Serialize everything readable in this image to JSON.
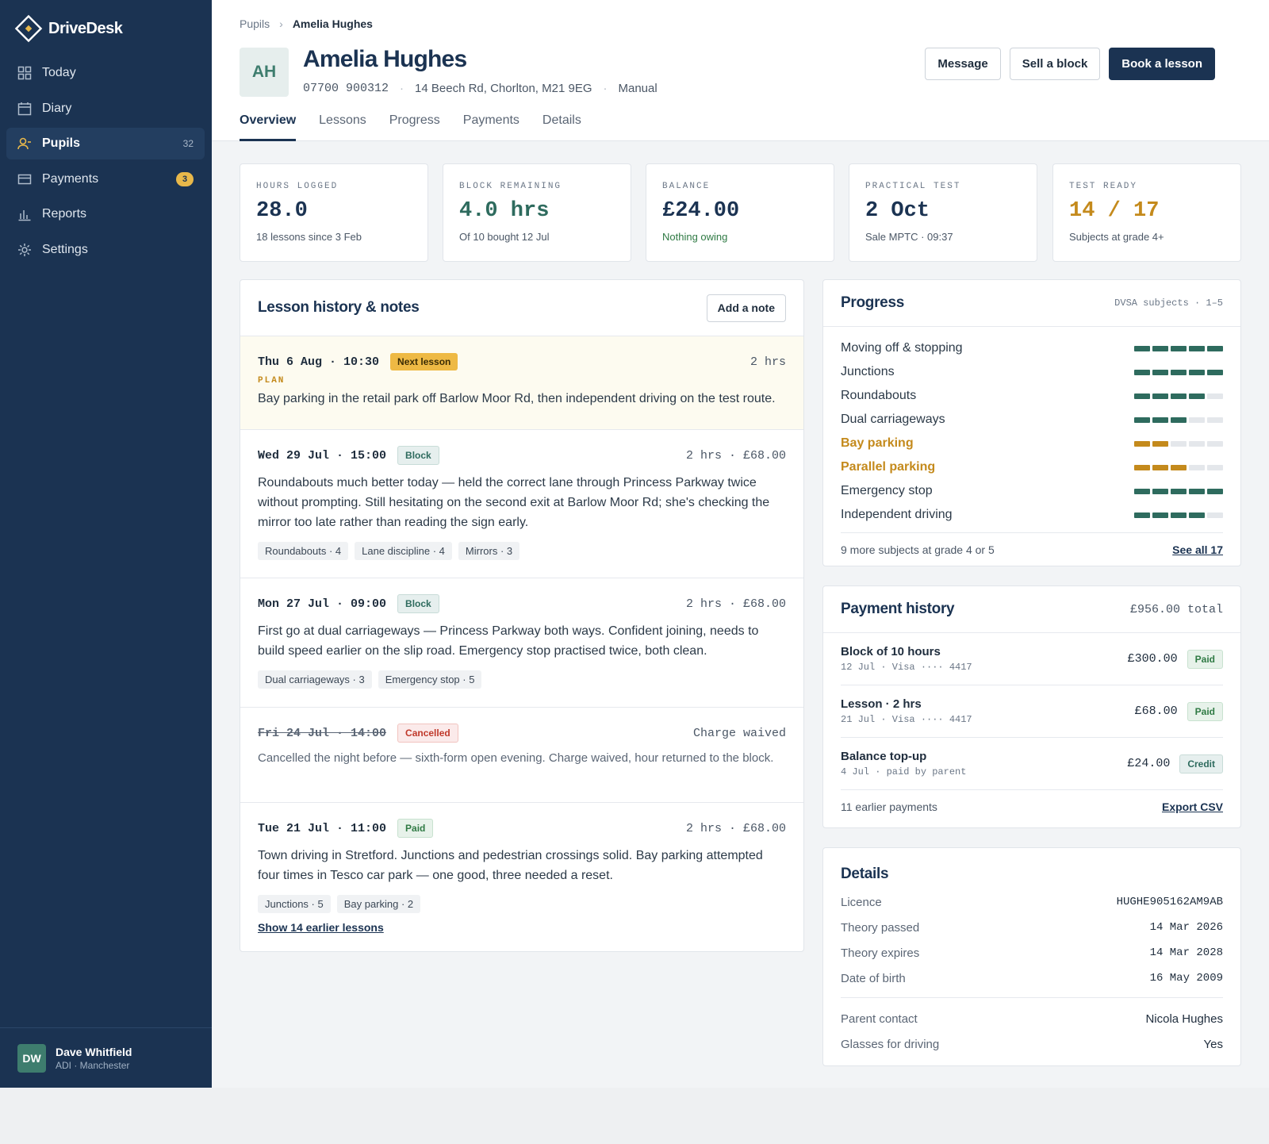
{
  "app": {
    "name": "DriveDesk"
  },
  "sidebar": {
    "items": [
      {
        "label": "Today",
        "icon": "grid-icon"
      },
      {
        "label": "Diary",
        "icon": "calendar-icon"
      },
      {
        "label": "Pupils",
        "icon": "user-icon",
        "count": "32",
        "active": true
      },
      {
        "label": "Payments",
        "icon": "card-icon",
        "badge": "3"
      },
      {
        "label": "Reports",
        "icon": "bar-chart-icon"
      },
      {
        "label": "Settings",
        "icon": "gear-icon"
      }
    ],
    "user": {
      "initials": "DW",
      "name": "Dave Whitfield",
      "role": "ADI · Manchester"
    }
  },
  "header": {
    "breadcrumb": {
      "parent": "Pupils",
      "current": "Amelia Hughes"
    },
    "initials": "AH",
    "name": "Amelia Hughes",
    "phone": "07700 900312",
    "address": "14 Beech Rd, Chorlton, M21 9EG",
    "transmission": "Manual",
    "buttons": {
      "message": "Message",
      "sell": "Sell a block",
      "book": "Book a lesson"
    },
    "tabs": [
      "Overview",
      "Lessons",
      "Progress",
      "Payments",
      "Details"
    ]
  },
  "stats": [
    {
      "label": "HOURS LOGGED",
      "value": "28.0",
      "sub": "18 lessons since 3 Feb",
      "color": "#1b3352"
    },
    {
      "label": "BLOCK REMAINING",
      "value": "4.0 hrs",
      "sub": "Of 10 bought 12 Jul",
      "color": "#2e6b5e"
    },
    {
      "label": "BALANCE",
      "value": "£24.00",
      "sub": "Nothing owing",
      "color": "#1b3352",
      "sub_color": "#2f7a44"
    },
    {
      "label": "PRACTICAL TEST",
      "value": "2 Oct",
      "sub": "Sale MPTC · 09:37",
      "color": "#1b3352"
    },
    {
      "label": "TEST READY",
      "value": "14 / 17",
      "sub": "Subjects at grade 4+",
      "color": "#c48a1c"
    }
  ],
  "history": {
    "title": "Lesson history & notes",
    "add_note": "Add a note",
    "next": {
      "date": "Thu 6 Aug · 10:30",
      "badge": "Next lesson",
      "right": "2 hrs",
      "plan_label": "PLAN",
      "text": "Bay parking in the retail park off Barlow Moor Rd, then independent driving on the test route."
    },
    "entries": [
      {
        "date": "Wed 29 Jul · 15:00",
        "badge": "Block",
        "right": "2 hrs · £68.00",
        "text": "Roundabouts much better today — held the correct lane through Princess Parkway twice without prompting. Still hesitating on the second exit at Barlow Moor Rd; she's checking the mirror too late rather than reading the sign early.",
        "tags": [
          "Roundabouts · 4",
          "Lane discipline · 4",
          "Mirrors · 3"
        ]
      },
      {
        "date": "Mon 27 Jul · 09:00",
        "badge": "Block",
        "right": "2 hrs · £68.00",
        "text": "First go at dual carriageways — Princess Parkway both ways. Confident joining, needs to build speed earlier on the slip road. Emergency stop practised twice, both clean.",
        "tags": [
          "Dual carriageways · 3",
          "Emergency stop · 5"
        ]
      },
      {
        "date": "Fri 24 Jul · 14:00",
        "badge": "Cancelled",
        "right": "Charge waived",
        "text": "Cancelled the night before — sixth-form open evening. Charge waived, hour returned to the block.",
        "tags": []
      },
      {
        "date": "Tue 21 Jul · 11:00",
        "badge": "Paid",
        "right": "2 hrs · £68.00",
        "text": "Town driving in Stretford. Junctions and pedestrian crossings solid. Bay parking attempted four times in Tesco car park — one good, three needed a reset.",
        "tags": [
          "Junctions · 5",
          "Bay parking · 2"
        ]
      }
    ],
    "more": "Show 14 earlier lessons"
  },
  "progress": {
    "title": "Progress",
    "aside": "DVSA subjects · 1–5",
    "subjects": [
      {
        "name": "Moving off & stopping",
        "grade": 5,
        "warn": false
      },
      {
        "name": "Junctions",
        "grade": 5,
        "warn": false
      },
      {
        "name": "Roundabouts",
        "grade": 4,
        "warn": false
      },
      {
        "name": "Dual carriageways",
        "grade": 3,
        "warn": false
      },
      {
        "name": "Bay parking",
        "grade": 2,
        "warn": true
      },
      {
        "name": "Parallel parking",
        "grade": 3,
        "warn": true
      },
      {
        "name": "Emergency stop",
        "grade": 5,
        "warn": false
      },
      {
        "name": "Independent driving",
        "grade": 4,
        "warn": false
      }
    ],
    "footer": "9 more subjects at grade 4 or 5",
    "see_all": "See all 17"
  },
  "payments": {
    "title": "Payment history",
    "total": "£956.00 total",
    "rows": [
      {
        "title": "Block of 10 hours",
        "sub": "12 Jul · Visa ···· 4417",
        "amount": "£300.00",
        "badge": "Paid"
      },
      {
        "title": "Lesson · 2 hrs",
        "sub": "21 Jul · Visa ···· 4417",
        "amount": "£68.00",
        "badge": "Paid"
      },
      {
        "title": "Balance top-up",
        "sub": "4 Jul · paid by parent",
        "amount": "£24.00",
        "badge": "Credit"
      }
    ],
    "footer": "11 earlier payments",
    "export": "Export CSV"
  },
  "details": {
    "title": "Details",
    "rows": [
      {
        "label": "Licence",
        "value": "HUGHE905162AM9AB"
      },
      {
        "label": "Theory passed",
        "value": "14 Mar 2026"
      },
      {
        "label": "Theory expires",
        "value": "14 Mar 2028"
      },
      {
        "label": "Date of birth",
        "value": "16 May 2009"
      }
    ],
    "rows2": [
      {
        "label": "Parent contact",
        "value": "Nicola Hughes"
      },
      {
        "label": "Glasses for driving",
        "value": "Yes"
      }
    ]
  }
}
